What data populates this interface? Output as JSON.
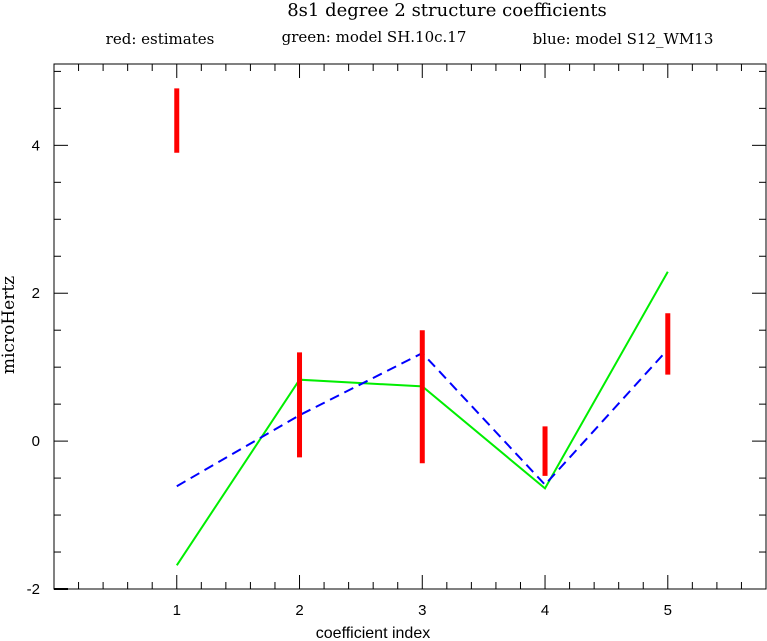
{
  "chart_data": {
    "type": "line",
    "title": "8s1 degree 2 structure coefficients",
    "legend": [
      {
        "label": "red: estimates",
        "color": "#ff0000"
      },
      {
        "label": "green: model SH.10c.17",
        "color": "#00ee00"
      },
      {
        "label": "blue: model S12_WM13",
        "color": "#0000ff"
      }
    ],
    "xlabel": "coefficient index",
    "ylabel": "microHertz",
    "xlim": [
      0.0,
      5.8
    ],
    "ylim": [
      -2.0,
      5.1
    ],
    "x_ticks": [
      1,
      2,
      3,
      4,
      5
    ],
    "y_ticks": [
      -2,
      0,
      2,
      4
    ],
    "x_minor_step": 0.2,
    "y_minor_step": 0.5,
    "error_bars": {
      "name": "estimates",
      "color": "#ff0000",
      "x": [
        1,
        2,
        3,
        4,
        5
      ],
      "low": [
        3.9,
        -0.22,
        -0.3,
        -0.47,
        0.9
      ],
      "high": [
        4.77,
        1.2,
        1.5,
        0.2,
        1.73
      ]
    },
    "series": [
      {
        "name": "model SH.10c.17",
        "color": "#00ee00",
        "dash": "solid",
        "x": [
          1,
          2,
          3,
          4,
          5
        ],
        "values": [
          -1.68,
          0.83,
          0.74,
          -0.64,
          2.29
        ]
      },
      {
        "name": "model S12_WM13",
        "color": "#0000ff",
        "dash": "dashed",
        "x": [
          1,
          2,
          3,
          4,
          5
        ],
        "values": [
          -0.61,
          0.35,
          1.19,
          -0.59,
          1.24
        ]
      }
    ]
  }
}
